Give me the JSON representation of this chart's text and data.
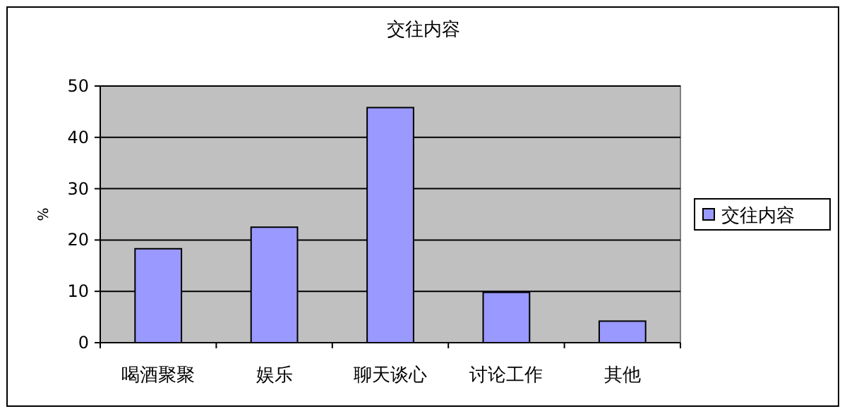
{
  "chart_data": {
    "type": "bar",
    "title": "交往内容",
    "ylabel": "%",
    "categories": [
      "喝酒聚聚",
      "娱乐",
      "聊天谈心",
      "讨论工作",
      "其他"
    ],
    "series": [
      {
        "name": "交往内容",
        "color": "#9999ff",
        "values": [
          18.3,
          22.5,
          45.8,
          9.8,
          4.2
        ]
      }
    ],
    "ylim": [
      0,
      50
    ],
    "yticks": [
      0,
      10,
      20,
      30,
      40,
      50
    ],
    "grid": "y",
    "legend": "right"
  }
}
